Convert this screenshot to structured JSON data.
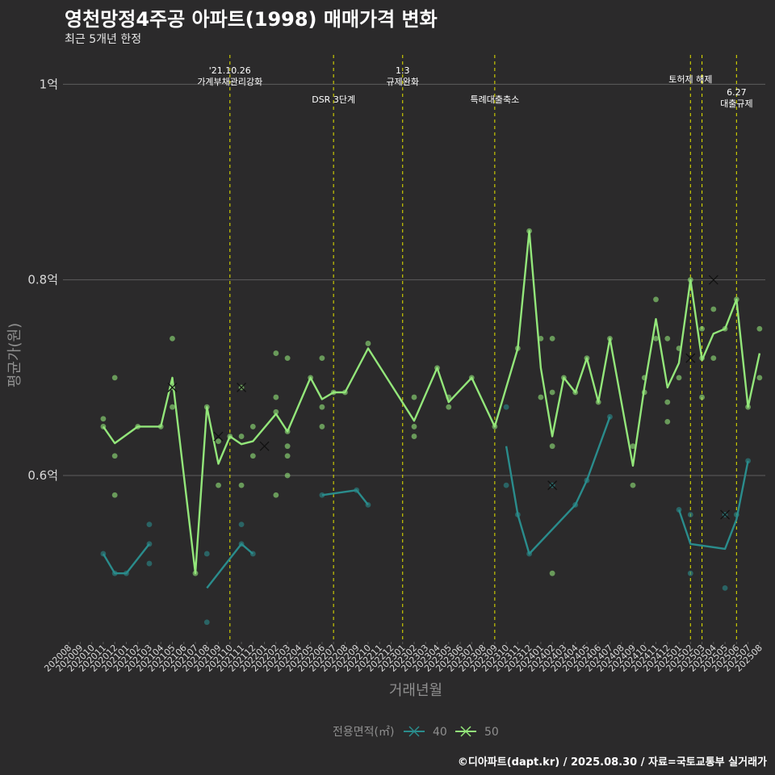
{
  "title": "영천망정4주공 아파트(1998) 매매가격 변화",
  "subtitle": "최근 5개년 한정",
  "caption": "©디아파트(dapt.kr) / 2025.08.30 / 자료=국토교통부 실거래가",
  "chart_data": {
    "type": "line",
    "xlabel": "거래년월",
    "ylabel": "평균가(원)",
    "ylim": [
      0.43,
      1.03
    ],
    "yticks": [
      {
        "value": 0.6,
        "label": "0.6억"
      },
      {
        "value": 0.8,
        "label": "0.8억"
      },
      {
        "value": 1.0,
        "label": "1억"
      }
    ],
    "categories": [
      "202008",
      "202009",
      "202010",
      "202011",
      "202012",
      "202101",
      "202102",
      "202103",
      "202104",
      "202105",
      "202106",
      "202107",
      "202108",
      "202109",
      "202110",
      "202111",
      "202112",
      "202201",
      "202202",
      "202203",
      "202204",
      "202205",
      "202206",
      "202207",
      "202208",
      "202209",
      "202210",
      "202211",
      "202212",
      "202301",
      "202302",
      "202303",
      "202304",
      "202305",
      "202306",
      "202307",
      "202308",
      "202309",
      "202310",
      "202311",
      "202312",
      "202401",
      "202402",
      "202403",
      "202404",
      "202405",
      "202406",
      "202407",
      "202408",
      "202409",
      "202410",
      "202411",
      "202412",
      "202501",
      "202502",
      "202503",
      "202504",
      "202505",
      "202506",
      "202507",
      "202508"
    ],
    "grid": true,
    "legend": {
      "title": "전용면적(㎡)",
      "position": "bottom",
      "entries": [
        {
          "label": "40",
          "color": "#2a8c8c"
        },
        {
          "label": "50",
          "color": "#93e67a"
        }
      ]
    },
    "annotations": [
      {
        "x": "202110",
        "lines": [
          "'21.10.26",
          "가계부채관리강화"
        ],
        "row": 0
      },
      {
        "x": "202207",
        "lines": [
          "DSR 3단계"
        ],
        "row": 2
      },
      {
        "x": "202301",
        "lines": [
          "1.3",
          "규제완화"
        ],
        "row": 0
      },
      {
        "x": "202309",
        "lines": [
          "특례대출축소"
        ],
        "row": 2
      },
      {
        "x": "202502",
        "lines": [
          "토허제 해제"
        ],
        "row": 1
      },
      {
        "x": "202503",
        "lines": [],
        "row": 0
      },
      {
        "x": "202506",
        "lines": [
          "6.27",
          "대출규제"
        ],
        "row": 3
      }
    ],
    "series": [
      {
        "name": "40",
        "color": "#2a8c8c",
        "line_segments": [
          [
            [
              "202011",
              0.52
            ],
            [
              "202012",
              0.5
            ],
            [
              "202101",
              0.5
            ],
            [
              "202103",
              0.53
            ]
          ],
          [
            [
              "202108",
              0.485
            ],
            [
              "202111",
              0.53
            ],
            [
              "202112",
              0.52
            ]
          ],
          [
            [
              "202206",
              0.58
            ],
            [
              "202209",
              0.585
            ],
            [
              "202210",
              0.57
            ]
          ],
          [
            [
              "202310",
              0.63
            ],
            [
              "202311",
              0.56
            ],
            [
              "202312",
              0.52
            ],
            [
              "202404",
              0.57
            ],
            [
              "202405",
              0.595
            ],
            [
              "202407",
              0.66
            ]
          ],
          [
            [
              "202501",
              0.565
            ],
            [
              "202502",
              0.53
            ],
            [
              "202505",
              0.525
            ],
            [
              "202506",
              0.555
            ],
            [
              "202507",
              0.615
            ]
          ]
        ],
        "points": [
          [
            "202011",
            0.52
          ],
          [
            "202012",
            0.5
          ],
          [
            "202101",
            0.5
          ],
          [
            "202103",
            0.53
          ],
          [
            "202103",
            0.51
          ],
          [
            "202103",
            0.55
          ],
          [
            "202108",
            0.52
          ],
          [
            "202108",
            0.45
          ],
          [
            "202111",
            0.53
          ],
          [
            "202111",
            0.55
          ],
          [
            "202112",
            0.52
          ],
          [
            "202206",
            0.58
          ],
          [
            "202209",
            0.585
          ],
          [
            "202210",
            0.57
          ],
          [
            "202310",
            0.59
          ],
          [
            "202310",
            0.67
          ],
          [
            "202311",
            0.56
          ],
          [
            "202312",
            0.52
          ],
          [
            "202402",
            0.59
          ],
          [
            "202404",
            0.57
          ],
          [
            "202405",
            0.595
          ],
          [
            "202407",
            0.66
          ],
          [
            "202501",
            0.565
          ],
          [
            "202502",
            0.56
          ],
          [
            "202502",
            0.5
          ],
          [
            "202505",
            0.56
          ],
          [
            "202505",
            0.485
          ],
          [
            "202506",
            0.56
          ],
          [
            "202507",
            0.615
          ]
        ],
        "cross_points": [
          [
            "202402",
            0.59
          ],
          [
            "202505",
            0.56
          ]
        ]
      },
      {
        "name": "50",
        "color": "#93e67a",
        "line_segments": [
          [
            [
              "202011",
              0.65
            ],
            [
              "202012",
              0.633
            ],
            [
              "202102",
              0.65
            ],
            [
              "202104",
              0.65
            ],
            [
              "202105",
              0.7
            ],
            [
              "202107",
              0.5
            ],
            [
              "202108",
              0.67
            ],
            [
              "202109",
              0.612
            ],
            [
              "202110",
              0.64
            ],
            [
              "202111",
              0.632
            ],
            [
              "202112",
              0.635
            ],
            [
              "202202",
              0.663
            ],
            [
              "202203",
              0.645
            ],
            [
              "202205",
              0.7
            ],
            [
              "202206",
              0.678
            ],
            [
              "202207",
              0.685
            ],
            [
              "202208",
              0.685
            ],
            [
              "202210",
              0.73
            ],
            [
              "202302",
              0.656
            ],
            [
              "202304",
              0.71
            ],
            [
              "202305",
              0.675
            ],
            [
              "202307",
              0.7
            ],
            [
              "202309",
              0.65
            ],
            [
              "202311",
              0.73
            ],
            [
              "202312",
              0.85
            ],
            [
              "202401",
              0.71
            ],
            [
              "202402",
              0.64
            ],
            [
              "202403",
              0.7
            ],
            [
              "202404",
              0.685
            ],
            [
              "202405",
              0.72
            ],
            [
              "202406",
              0.675
            ],
            [
              "202407",
              0.74
            ],
            [
              "202409",
              0.61
            ],
            [
              "202410",
              0.69
            ],
            [
              "202411",
              0.76
            ],
            [
              "202412",
              0.69
            ],
            [
              "202501",
              0.715
            ],
            [
              "202502",
              0.8
            ],
            [
              "202503",
              0.718
            ],
            [
              "202504",
              0.745
            ],
            [
              "202505",
              0.75
            ],
            [
              "202506",
              0.78
            ],
            [
              "202507",
              0.67
            ],
            [
              "202508",
              0.725
            ]
          ]
        ],
        "points": [
          [
            "202011",
            0.658
          ],
          [
            "202011",
            0.65
          ],
          [
            "202012",
            0.7
          ],
          [
            "202012",
            0.62
          ],
          [
            "202012",
            0.58
          ],
          [
            "202102",
            0.65
          ],
          [
            "202104",
            0.65
          ],
          [
            "202105",
            0.74
          ],
          [
            "202105",
            0.67
          ],
          [
            "202105",
            0.69
          ],
          [
            "202107",
            0.5
          ],
          [
            "202108",
            0.67
          ],
          [
            "202109",
            0.635
          ],
          [
            "202109",
            0.59
          ],
          [
            "202110",
            0.64
          ],
          [
            "202111",
            0.69
          ],
          [
            "202111",
            0.64
          ],
          [
            "202111",
            0.59
          ],
          [
            "202112",
            0.65
          ],
          [
            "202112",
            0.62
          ],
          [
            "202202",
            0.725
          ],
          [
            "202202",
            0.68
          ],
          [
            "202202",
            0.665
          ],
          [
            "202202",
            0.58
          ],
          [
            "202203",
            0.72
          ],
          [
            "202203",
            0.645
          ],
          [
            "202203",
            0.63
          ],
          [
            "202203",
            0.62
          ],
          [
            "202203",
            0.6
          ],
          [
            "202205",
            0.7
          ],
          [
            "202206",
            0.72
          ],
          [
            "202206",
            0.67
          ],
          [
            "202206",
            0.65
          ],
          [
            "202207",
            0.685
          ],
          [
            "202208",
            0.685
          ],
          [
            "202210",
            0.735
          ],
          [
            "202302",
            0.68
          ],
          [
            "202302",
            0.65
          ],
          [
            "202302",
            0.64
          ],
          [
            "202304",
            0.71
          ],
          [
            "202305",
            0.68
          ],
          [
            "202305",
            0.67
          ],
          [
            "202307",
            0.7
          ],
          [
            "202309",
            0.65
          ],
          [
            "202311",
            0.73
          ],
          [
            "202312",
            0.85
          ],
          [
            "202401",
            0.74
          ],
          [
            "202401",
            0.68
          ],
          [
            "202402",
            0.74
          ],
          [
            "202402",
            0.685
          ],
          [
            "202402",
            0.63
          ],
          [
            "202402",
            0.5
          ],
          [
            "202403",
            0.7
          ],
          [
            "202404",
            0.685
          ],
          [
            "202405",
            0.72
          ],
          [
            "202406",
            0.675
          ],
          [
            "202407",
            0.74
          ],
          [
            "202409",
            0.63
          ],
          [
            "202409",
            0.59
          ],
          [
            "202410",
            0.7
          ],
          [
            "202410",
            0.685
          ],
          [
            "202411",
            0.78
          ],
          [
            "202411",
            0.74
          ],
          [
            "202412",
            0.74
          ],
          [
            "202412",
            0.675
          ],
          [
            "202412",
            0.655
          ],
          [
            "202501",
            0.73
          ],
          [
            "202501",
            0.7
          ],
          [
            "202502",
            0.8
          ],
          [
            "202503",
            0.75
          ],
          [
            "202503",
            0.72
          ],
          [
            "202503",
            0.68
          ],
          [
            "202504",
            0.77
          ],
          [
            "202504",
            0.72
          ],
          [
            "202505",
            0.75
          ],
          [
            "202506",
            0.78
          ],
          [
            "202507",
            0.67
          ],
          [
            "202508",
            0.75
          ],
          [
            "202508",
            0.7
          ]
        ],
        "cross_points": [
          [
            "202105",
            0.69
          ],
          [
            "202109",
            0.64
          ],
          [
            "202111",
            0.69
          ],
          [
            "202201",
            0.63
          ],
          [
            "202502",
            0.72
          ],
          [
            "202504",
            0.8
          ]
        ]
      }
    ]
  }
}
